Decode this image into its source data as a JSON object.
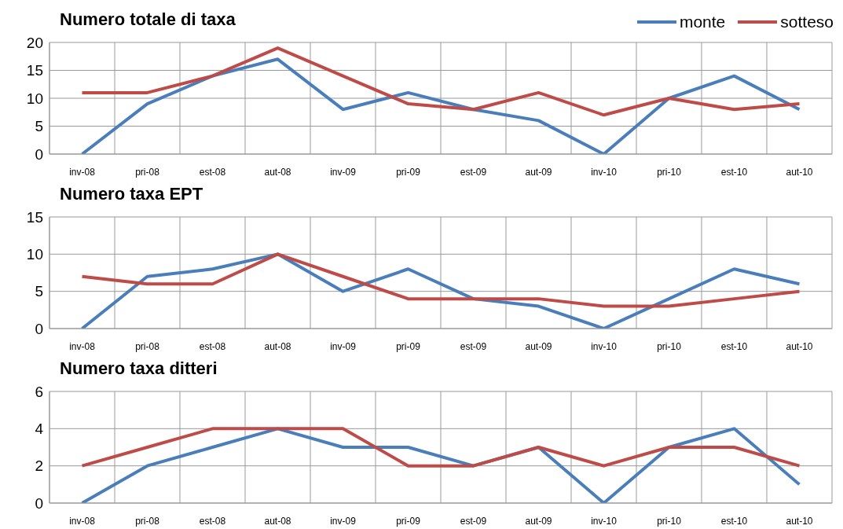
{
  "chart_data": [
    {
      "type": "line",
      "title": "Numero totale di taxa",
      "categories": [
        "inv-08",
        "pri-08",
        "est-08",
        "aut-08",
        "inv-09",
        "pri-09",
        "est-09",
        "aut-09",
        "inv-10",
        "pri-10",
        "est-10",
        "aut-10"
      ],
      "series": [
        {
          "name": "monte",
          "color": "#4a7ebb",
          "values": [
            0,
            9,
            14,
            17,
            8,
            11,
            8,
            6,
            0,
            10,
            14,
            8
          ]
        },
        {
          "name": "sotteso",
          "color": "#be4b48",
          "values": [
            11,
            11,
            14,
            19,
            14,
            9,
            8,
            11,
            7,
            10,
            8,
            9
          ]
        }
      ],
      "ylim": [
        0,
        20
      ],
      "yticks": [
        0,
        5,
        10,
        15,
        20
      ],
      "grid": true,
      "legend": "top right",
      "marker": "none"
    },
    {
      "type": "line",
      "title": "Numero taxa EPT",
      "categories": [
        "inv-08",
        "pri-08",
        "est-08",
        "aut-08",
        "inv-09",
        "pri-09",
        "est-09",
        "aut-09",
        "inv-10",
        "pri-10",
        "est-10",
        "aut-10"
      ],
      "series": [
        {
          "color": "#4a7ebb",
          "values": [
            0,
            7,
            8,
            10,
            5,
            8,
            4,
            3,
            0,
            4,
            8,
            6
          ]
        },
        {
          "color": "#be4b48",
          "values": [
            7,
            6,
            6,
            10,
            7,
            4,
            4,
            4,
            3,
            3,
            4,
            5
          ]
        }
      ],
      "ylim": [
        0,
        15
      ],
      "yticks": [
        0,
        5,
        10,
        15
      ],
      "grid": true,
      "marker": "none"
    },
    {
      "type": "line",
      "title": "Numero taxa ditteri",
      "categories": [
        "inv-08",
        "pri-08",
        "est-08",
        "aut-08",
        "inv-09",
        "pri-09",
        "est-09",
        "aut-09",
        "inv-10",
        "pri-10",
        "est-10",
        "aut-10"
      ],
      "series": [
        {
          "color": "#4a7ebb",
          "values": [
            0,
            2,
            3,
            4,
            3,
            3,
            2,
            3,
            0,
            3,
            4,
            1
          ]
        },
        {
          "color": "#be4b48",
          "values": [
            2,
            3,
            4,
            4,
            4,
            2,
            2,
            3,
            2,
            3,
            3,
            2
          ]
        }
      ],
      "ylim": [
        0,
        6
      ],
      "yticks": [
        0,
        2,
        4,
        6
      ],
      "grid": true,
      "marker": "none"
    }
  ]
}
